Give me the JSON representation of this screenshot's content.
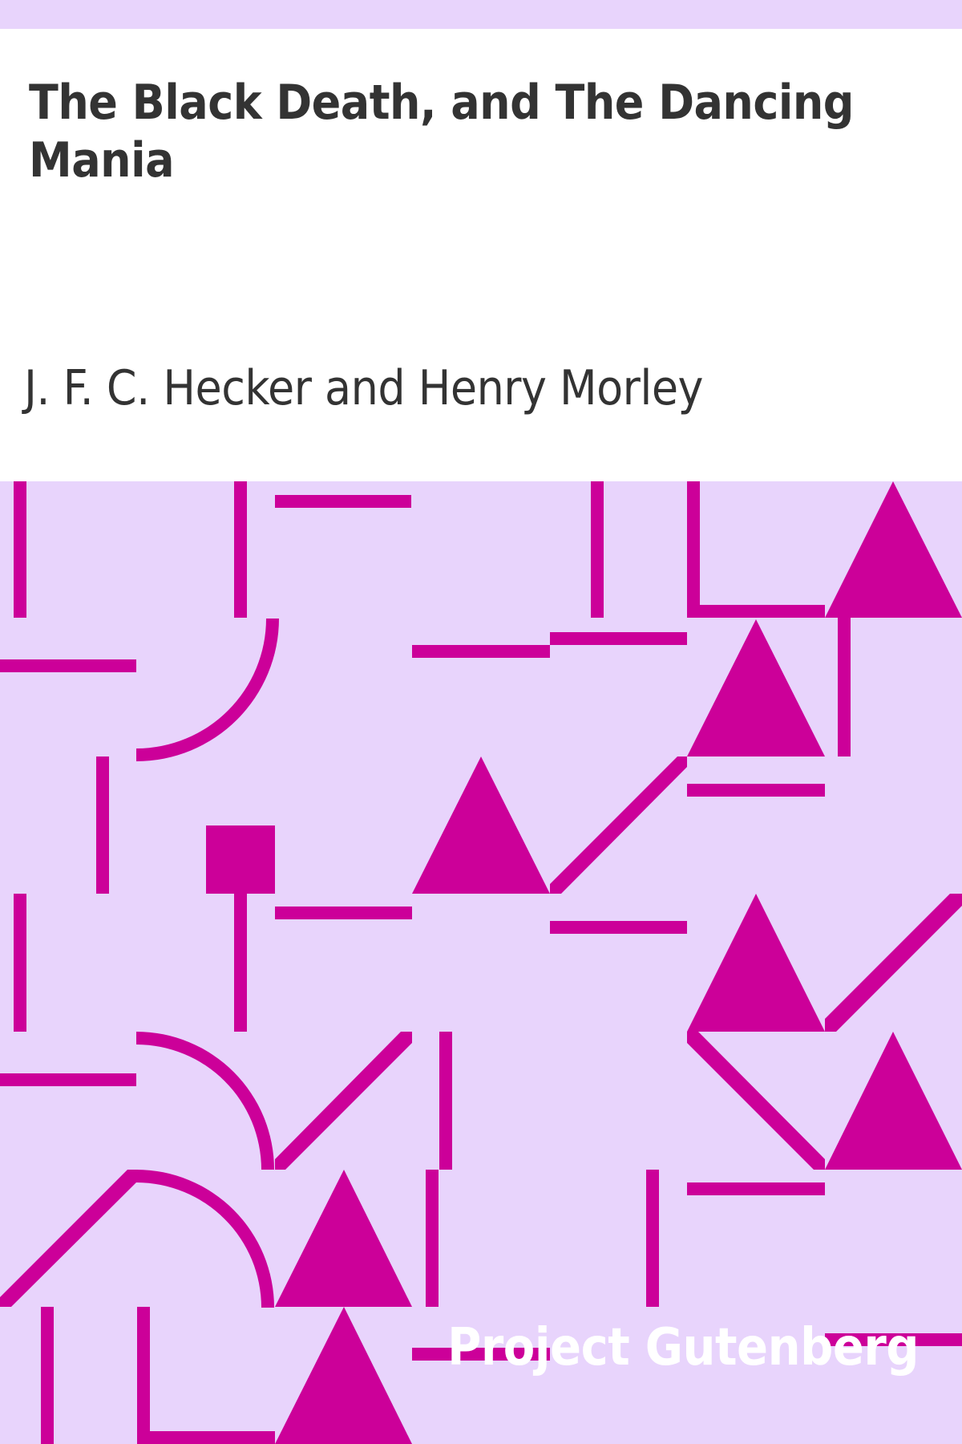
{
  "book": {
    "title": "The Black Death, and The Dancing Mania",
    "author": "J. F. C. Hecker and Henry Morley",
    "publisher": "Project Gutenberg"
  },
  "colors": {
    "background": "#e8d4fc",
    "panel": "#ffffff",
    "pattern": "#cc0099",
    "text": "#333333",
    "publisher_text": "#ffffff"
  }
}
